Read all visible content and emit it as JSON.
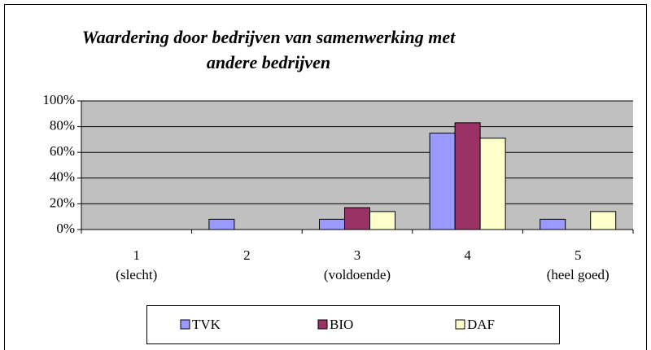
{
  "chart_data": {
    "type": "bar",
    "title": "Waardering door bedrijven van samenwerking met\nandere bedrijven",
    "categories": [
      "1\n(slecht)",
      "2",
      "3\n(voldoende)",
      "4",
      "5\n(heel goed)"
    ],
    "series": [
      {
        "name": "TVK",
        "color": "#9999ff",
        "values": [
          0,
          8,
          8,
          75,
          8
        ]
      },
      {
        "name": "BIO",
        "color": "#993366",
        "values": [
          0,
          0,
          17,
          83,
          0
        ]
      },
      {
        "name": "DAF",
        "color": "#ffffcc",
        "values": [
          0,
          0,
          14,
          71,
          14
        ]
      }
    ],
    "ylim": [
      0,
      100
    ],
    "yticks": [
      {
        "value": 0,
        "label": "0%"
      },
      {
        "value": 20,
        "label": "20%"
      },
      {
        "value": 40,
        "label": "40%"
      },
      {
        "value": 60,
        "label": "60%"
      },
      {
        "value": 80,
        "label": "80%"
      },
      {
        "value": 100,
        "label": "100%"
      }
    ],
    "grid": true,
    "legend": "bottom",
    "plot_background": "#c0c0c0"
  }
}
